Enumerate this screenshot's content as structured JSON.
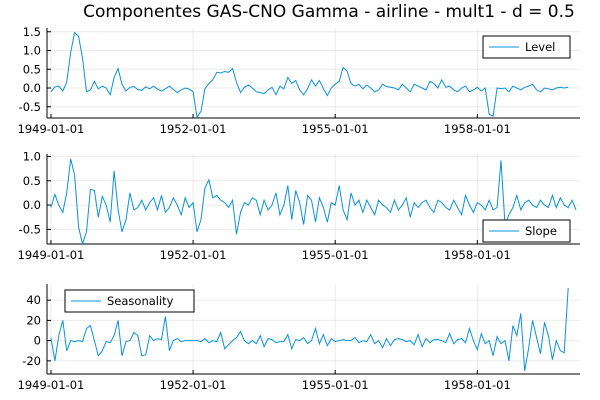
{
  "chart_data": {
    "type": "line",
    "title": "Componentes GAS-CNO Gamma - airline - mult1 - d = 0.5",
    "x_ticks": [
      "1949-01-01",
      "1952-01-01",
      "1955-01-01",
      "1958-01-01"
    ],
    "x_tick_months": [
      0,
      36,
      72,
      108
    ],
    "x_range_months": [
      -1,
      134
    ],
    "colors": {
      "line": "#0b93d8"
    },
    "panels": [
      {
        "series_name": "Level",
        "legend": "top-right",
        "ylim": [
          -0.8,
          1.6
        ],
        "y_ticks": [
          1.5,
          1.0,
          0.5,
          0.0,
          -0.5
        ],
        "y_tick_labels": [
          "1.5",
          "1.0",
          "0.5",
          "0.0",
          "-0.5"
        ],
        "values": [
          -0.1,
          0.03,
          0.05,
          -0.08,
          0.15,
          0.95,
          1.48,
          1.38,
          0.8,
          -0.1,
          -0.05,
          0.18,
          -0.02,
          0.05,
          0.0,
          -0.18,
          0.28,
          0.52,
          0.1,
          -0.08,
          0.02,
          0.04,
          -0.04,
          -0.06,
          0.03,
          -0.02,
          0.05,
          -0.03,
          -0.08,
          -0.02,
          0.05,
          -0.04,
          -0.12,
          -0.05,
          0.0,
          -0.03,
          -0.1,
          -0.78,
          -0.62,
          -0.02,
          0.12,
          0.22,
          0.42,
          0.4,
          0.44,
          0.42,
          0.52,
          0.15,
          -0.12,
          0.02,
          0.08,
          0.0,
          -0.1,
          -0.12,
          -0.15,
          -0.05,
          0.02,
          -0.18,
          0.05,
          -0.02,
          0.28,
          0.12,
          0.2,
          -0.05,
          -0.18,
          -0.02,
          0.22,
          0.05,
          0.2,
          -0.02,
          -0.2,
          0.0,
          0.1,
          0.18,
          0.55,
          0.45,
          0.12,
          0.05,
          0.1,
          -0.02,
          0.08,
          0.0,
          -0.1,
          -0.05,
          0.1,
          0.04,
          0.02,
          0.0,
          -0.05,
          0.1,
          0.0,
          -0.1,
          0.1,
          0.05,
          0.0,
          -0.05,
          0.18,
          0.12,
          0.0,
          0.22,
          0.02,
          0.05,
          -0.05,
          -0.1,
          0.0,
          0.05,
          -0.1,
          -0.05,
          0.02,
          -0.08,
          0.0,
          -0.7,
          -0.75,
          0.0,
          -0.02,
          0.0,
          -0.1,
          0.05,
          0.0,
          -0.05,
          0.02,
          0.05,
          0.1,
          -0.05,
          -0.1,
          0.0,
          -0.02,
          -0.05,
          0.0,
          0.02,
          0.0,
          0.02
        ]
      },
      {
        "series_name": "Slope",
        "legend": "bottom-right",
        "ylim": [
          -0.8,
          1.05
        ],
        "y_ticks": [
          1.0,
          0.5,
          0.0,
          -0.5
        ],
        "y_tick_labels": [
          "1.0",
          "0.5",
          "0.0",
          "-0.5"
        ],
        "values": [
          -0.05,
          0.22,
          0.0,
          -0.15,
          0.25,
          0.95,
          0.62,
          -0.45,
          -0.8,
          -0.55,
          0.32,
          0.3,
          -0.25,
          0.18,
          0.0,
          -0.35,
          0.7,
          -0.1,
          -0.55,
          -0.3,
          0.25,
          -0.1,
          -0.05,
          0.1,
          -0.1,
          0.05,
          0.15,
          -0.1,
          0.2,
          -0.15,
          -0.05,
          0.15,
          0.0,
          -0.2,
          0.15,
          -0.05,
          0.05,
          -0.55,
          -0.3,
          0.35,
          0.52,
          0.15,
          0.2,
          0.1,
          0.05,
          -0.05,
          0.1,
          -0.6,
          -0.15,
          0.05,
          0.0,
          0.15,
          0.1,
          -0.2,
          0.1,
          -0.1,
          0.0,
          0.25,
          -0.2,
          0.0,
          0.4,
          -0.3,
          0.3,
          0.05,
          -0.4,
          0.2,
          0.1,
          -0.35,
          0.15,
          -0.05,
          -0.35,
          0.05,
          0.0,
          0.4,
          -0.1,
          -0.3,
          0.25,
          0.0,
          0.1,
          -0.15,
          0.1,
          -0.05,
          -0.2,
          0.1,
          0.0,
          -0.05,
          -0.15,
          0.1,
          -0.1,
          0.0,
          0.15,
          -0.25,
          0.05,
          -0.05,
          0.05,
          0.1,
          -0.05,
          -0.15,
          0.1,
          0.05,
          -0.05,
          -0.1,
          0.1,
          -0.05,
          -0.2,
          0.2,
          0.0,
          -0.15,
          0.05,
          0.0,
          -0.1,
          0.1,
          -0.1,
          -0.05,
          0.92,
          -0.4,
          -0.2,
          -0.05,
          0.2,
          -0.1,
          0.05,
          0.1,
          0.0,
          -0.05,
          0.1,
          0.0,
          -0.05,
          0.2,
          -0.05,
          0.15,
          0.0,
          -0.05,
          0.1,
          -0.1
        ]
      },
      {
        "series_name": "Seasonality",
        "legend": "top-left",
        "ylim": [
          -33,
          56
        ],
        "y_ticks": [
          40,
          20,
          0,
          -20
        ],
        "y_tick_labels": [
          "40",
          "20",
          "0",
          "-20"
        ],
        "values": [
          3,
          -20,
          5,
          20,
          -10,
          0,
          -1,
          0,
          -1,
          12,
          15,
          0,
          -15,
          -10,
          -1,
          -2,
          5,
          20,
          -15,
          -1,
          0,
          8,
          5,
          -15,
          -14,
          5,
          0,
          2,
          1,
          24,
          -10,
          0,
          2,
          -1,
          0,
          0,
          0,
          0,
          -1,
          2,
          -2,
          0,
          -1,
          8,
          -8,
          -4,
          0,
          3,
          9,
          0,
          -3,
          0,
          -3,
          5,
          -6,
          2,
          1,
          -2,
          -1,
          -1,
          6,
          -8,
          1,
          0,
          3,
          -3,
          0,
          12,
          -3,
          6,
          -5,
          2,
          -1,
          0,
          1,
          0,
          0,
          3,
          -2,
          0,
          -1,
          6,
          -3,
          0,
          -7,
          2,
          -5,
          1,
          2,
          1,
          -1,
          0,
          -4,
          6,
          -6,
          2,
          -2,
          1,
          1,
          0,
          -2,
          7,
          -3,
          1,
          2,
          -2,
          12,
          0,
          -9,
          7,
          -3,
          0,
          -15,
          4,
          -3,
          0,
          -20,
          15,
          5,
          27,
          -30,
          -7,
          20,
          3,
          -13,
          18,
          5,
          -19,
          0,
          -10,
          -12,
          52
        ]
      }
    ]
  }
}
